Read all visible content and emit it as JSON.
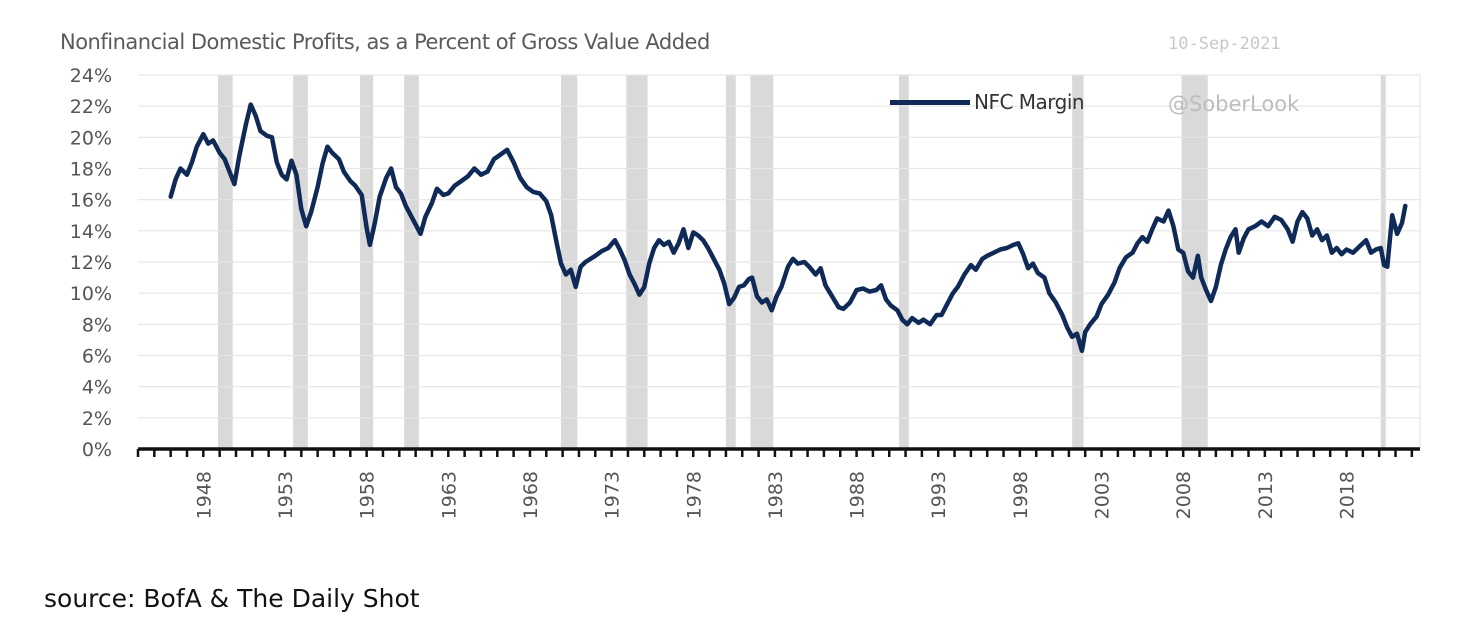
{
  "title": "Nonfinancial Domestic Profits, as a Percent of Gross Value Added",
  "date_stamp": "10-Sep-2021",
  "watermark": "@SoberLook",
  "source": "source: BofA & The Daily Shot",
  "colors": {
    "line": "#0f2a57",
    "recession": "#d9d9d9",
    "grid": "#e6e6e6",
    "axis": "#111111"
  },
  "chart_data": {
    "type": "line",
    "title": "Nonfinancial Domestic Profits, as a Percent of Gross Value Added",
    "xlabel": "",
    "ylabel": "",
    "xlim": [
      1944,
      2022.5
    ],
    "ylim": [
      0,
      24
    ],
    "y_tick_values": [
      0,
      2,
      4,
      6,
      8,
      10,
      12,
      14,
      16,
      18,
      20,
      22,
      24
    ],
    "y_tick_labels": [
      "0%",
      "2%",
      "4%",
      "6%",
      "8%",
      "10%",
      "12%",
      "14%",
      "16%",
      "18%",
      "20%",
      "22%",
      "24%"
    ],
    "x_tick_values": [
      1948,
      1953,
      1958,
      1963,
      1968,
      1973,
      1978,
      1983,
      1988,
      1993,
      1998,
      2003,
      2008,
      2013,
      2018
    ],
    "x_tick_labels": [
      "1948",
      "1953",
      "1958",
      "1963",
      "1968",
      "1973",
      "1978",
      "1983",
      "1988",
      "1993",
      "1998",
      "2003",
      "2008",
      "2013",
      "2018"
    ],
    "grid": true,
    "legend_position": "top-right",
    "recessions": [
      [
        1948.9,
        1949.8
      ],
      [
        1953.5,
        1954.4
      ],
      [
        1957.6,
        1958.4
      ],
      [
        1960.3,
        1961.2
      ],
      [
        1969.9,
        1970.9
      ],
      [
        1973.9,
        1975.2
      ],
      [
        1980.0,
        1980.6
      ],
      [
        1981.5,
        1982.9
      ],
      [
        1990.6,
        1991.2
      ],
      [
        2001.2,
        2001.9
      ],
      [
        2007.9,
        2009.5
      ],
      [
        2020.1,
        2020.4
      ]
    ],
    "series": [
      {
        "name": "NFC Margin",
        "points": [
          [
            1946.0,
            16.2
          ],
          [
            1946.3,
            17.3
          ],
          [
            1946.6,
            18.0
          ],
          [
            1947.0,
            17.6
          ],
          [
            1947.3,
            18.4
          ],
          [
            1947.6,
            19.4
          ],
          [
            1948.0,
            20.2
          ],
          [
            1948.3,
            19.6
          ],
          [
            1948.6,
            19.8
          ],
          [
            1949.0,
            19.0
          ],
          [
            1949.3,
            18.6
          ],
          [
            1949.6,
            17.8
          ],
          [
            1949.9,
            17.0
          ],
          [
            1950.2,
            18.8
          ],
          [
            1950.6,
            20.8
          ],
          [
            1950.9,
            22.1
          ],
          [
            1951.2,
            21.4
          ],
          [
            1951.5,
            20.4
          ],
          [
            1951.9,
            20.1
          ],
          [
            1952.2,
            20.0
          ],
          [
            1952.5,
            18.4
          ],
          [
            1952.8,
            17.6
          ],
          [
            1953.1,
            17.3
          ],
          [
            1953.4,
            18.5
          ],
          [
            1953.7,
            17.6
          ],
          [
            1954.0,
            15.4
          ],
          [
            1954.3,
            14.3
          ],
          [
            1954.6,
            15.2
          ],
          [
            1955.0,
            16.8
          ],
          [
            1955.3,
            18.3
          ],
          [
            1955.6,
            19.4
          ],
          [
            1955.9,
            19.0
          ],
          [
            1956.3,
            18.6
          ],
          [
            1956.6,
            17.8
          ],
          [
            1957.0,
            17.2
          ],
          [
            1957.3,
            16.9
          ],
          [
            1957.7,
            16.3
          ],
          [
            1958.0,
            14.2
          ],
          [
            1958.2,
            13.1
          ],
          [
            1958.5,
            14.5
          ],
          [
            1958.8,
            16.2
          ],
          [
            1959.2,
            17.4
          ],
          [
            1959.5,
            18.0
          ],
          [
            1959.8,
            16.8
          ],
          [
            1960.1,
            16.4
          ],
          [
            1960.4,
            15.6
          ],
          [
            1960.8,
            14.8
          ],
          [
            1961.1,
            14.2
          ],
          [
            1961.3,
            13.8
          ],
          [
            1961.6,
            14.9
          ],
          [
            1962.0,
            15.8
          ],
          [
            1962.3,
            16.7
          ],
          [
            1962.7,
            16.3
          ],
          [
            1963.0,
            16.4
          ],
          [
            1963.4,
            16.9
          ],
          [
            1963.8,
            17.2
          ],
          [
            1964.2,
            17.5
          ],
          [
            1964.6,
            18.0
          ],
          [
            1965.0,
            17.6
          ],
          [
            1965.4,
            17.8
          ],
          [
            1965.8,
            18.6
          ],
          [
            1966.2,
            18.9
          ],
          [
            1966.6,
            19.2
          ],
          [
            1967.0,
            18.4
          ],
          [
            1967.4,
            17.4
          ],
          [
            1967.8,
            16.8
          ],
          [
            1968.2,
            16.5
          ],
          [
            1968.6,
            16.4
          ],
          [
            1969.0,
            15.9
          ],
          [
            1969.3,
            15.0
          ],
          [
            1969.6,
            13.4
          ],
          [
            1969.9,
            11.9
          ],
          [
            1970.2,
            11.2
          ],
          [
            1970.5,
            11.5
          ],
          [
            1970.8,
            10.4
          ],
          [
            1971.1,
            11.7
          ],
          [
            1971.4,
            12.0
          ],
          [
            1971.7,
            12.2
          ],
          [
            1972.0,
            12.4
          ],
          [
            1972.4,
            12.7
          ],
          [
            1972.8,
            12.9
          ],
          [
            1973.2,
            13.4
          ],
          [
            1973.5,
            12.8
          ],
          [
            1973.8,
            12.1
          ],
          [
            1974.1,
            11.2
          ],
          [
            1974.4,
            10.6
          ],
          [
            1974.7,
            9.9
          ],
          [
            1975.0,
            10.4
          ],
          [
            1975.3,
            11.9
          ],
          [
            1975.6,
            12.9
          ],
          [
            1975.9,
            13.4
          ],
          [
            1976.2,
            13.1
          ],
          [
            1976.5,
            13.3
          ],
          [
            1976.8,
            12.6
          ],
          [
            1977.1,
            13.2
          ],
          [
            1977.4,
            14.1
          ],
          [
            1977.7,
            12.9
          ],
          [
            1978.0,
            13.9
          ],
          [
            1978.3,
            13.7
          ],
          [
            1978.6,
            13.4
          ],
          [
            1978.9,
            12.9
          ],
          [
            1979.2,
            12.3
          ],
          [
            1979.6,
            11.5
          ],
          [
            1979.9,
            10.6
          ],
          [
            1980.2,
            9.3
          ],
          [
            1980.5,
            9.7
          ],
          [
            1980.8,
            10.4
          ],
          [
            1981.1,
            10.5
          ],
          [
            1981.4,
            10.9
          ],
          [
            1981.6,
            11.0
          ],
          [
            1981.9,
            9.8
          ],
          [
            1982.2,
            9.4
          ],
          [
            1982.5,
            9.6
          ],
          [
            1982.8,
            8.9
          ],
          [
            1983.1,
            9.8
          ],
          [
            1983.4,
            10.4
          ],
          [
            1983.8,
            11.7
          ],
          [
            1984.1,
            12.2
          ],
          [
            1984.4,
            11.9
          ],
          [
            1984.8,
            12.0
          ],
          [
            1985.1,
            11.7
          ],
          [
            1985.5,
            11.2
          ],
          [
            1985.8,
            11.6
          ],
          [
            1986.1,
            10.5
          ],
          [
            1986.5,
            9.8
          ],
          [
            1986.9,
            9.1
          ],
          [
            1987.2,
            9.0
          ],
          [
            1987.6,
            9.4
          ],
          [
            1988.0,
            10.2
          ],
          [
            1988.4,
            10.3
          ],
          [
            1988.8,
            10.1
          ],
          [
            1989.2,
            10.2
          ],
          [
            1989.5,
            10.5
          ],
          [
            1989.8,
            9.6
          ],
          [
            1990.1,
            9.2
          ],
          [
            1990.5,
            8.9
          ],
          [
            1990.8,
            8.3
          ],
          [
            1991.1,
            8.0
          ],
          [
            1991.4,
            8.4
          ],
          [
            1991.8,
            8.1
          ],
          [
            1992.1,
            8.3
          ],
          [
            1992.5,
            8.0
          ],
          [
            1992.9,
            8.6
          ],
          [
            1993.2,
            8.6
          ],
          [
            1993.5,
            9.2
          ],
          [
            1993.9,
            10.0
          ],
          [
            1994.2,
            10.4
          ],
          [
            1994.6,
            11.2
          ],
          [
            1995.0,
            11.8
          ],
          [
            1995.3,
            11.5
          ],
          [
            1995.7,
            12.2
          ],
          [
            1996.0,
            12.4
          ],
          [
            1996.4,
            12.6
          ],
          [
            1996.8,
            12.8
          ],
          [
            1997.2,
            12.9
          ],
          [
            1997.6,
            13.1
          ],
          [
            1997.9,
            13.2
          ],
          [
            1998.2,
            12.5
          ],
          [
            1998.5,
            11.6
          ],
          [
            1998.8,
            11.9
          ],
          [
            1999.1,
            11.3
          ],
          [
            1999.5,
            11.0
          ],
          [
            1999.8,
            10.0
          ],
          [
            2000.2,
            9.4
          ],
          [
            2000.6,
            8.6
          ],
          [
            2000.9,
            7.8
          ],
          [
            2001.2,
            7.2
          ],
          [
            2001.5,
            7.4
          ],
          [
            2001.8,
            6.3
          ],
          [
            2002.0,
            7.5
          ],
          [
            2002.3,
            8.0
          ],
          [
            2002.7,
            8.5
          ],
          [
            2003.0,
            9.3
          ],
          [
            2003.4,
            9.9
          ],
          [
            2003.8,
            10.7
          ],
          [
            2004.1,
            11.6
          ],
          [
            2004.5,
            12.3
          ],
          [
            2004.9,
            12.6
          ],
          [
            2005.2,
            13.2
          ],
          [
            2005.5,
            13.6
          ],
          [
            2005.8,
            13.3
          ],
          [
            2006.1,
            14.1
          ],
          [
            2006.4,
            14.8
          ],
          [
            2006.8,
            14.6
          ],
          [
            2007.1,
            15.3
          ],
          [
            2007.4,
            14.3
          ],
          [
            2007.7,
            12.8
          ],
          [
            2008.0,
            12.6
          ],
          [
            2008.3,
            11.4
          ],
          [
            2008.6,
            11.0
          ],
          [
            2008.9,
            12.4
          ],
          [
            2009.1,
            11.0
          ],
          [
            2009.4,
            10.2
          ],
          [
            2009.7,
            9.5
          ],
          [
            2010.0,
            10.4
          ],
          [
            2010.3,
            11.8
          ],
          [
            2010.6,
            12.8
          ],
          [
            2010.9,
            13.6
          ],
          [
            2011.2,
            14.1
          ],
          [
            2011.4,
            12.6
          ],
          [
            2011.7,
            13.5
          ],
          [
            2012.0,
            14.1
          ],
          [
            2012.4,
            14.3
          ],
          [
            2012.8,
            14.6
          ],
          [
            2013.2,
            14.3
          ],
          [
            2013.6,
            14.9
          ],
          [
            2014.0,
            14.7
          ],
          [
            2014.4,
            14.1
          ],
          [
            2014.7,
            13.3
          ],
          [
            2015.0,
            14.6
          ],
          [
            2015.3,
            15.2
          ],
          [
            2015.6,
            14.8
          ],
          [
            2015.9,
            13.7
          ],
          [
            2016.2,
            14.1
          ],
          [
            2016.5,
            13.4
          ],
          [
            2016.8,
            13.7
          ],
          [
            2017.1,
            12.6
          ],
          [
            2017.4,
            12.9
          ],
          [
            2017.7,
            12.5
          ],
          [
            2018.0,
            12.8
          ],
          [
            2018.4,
            12.6
          ],
          [
            2018.8,
            13.0
          ],
          [
            2019.2,
            13.4
          ],
          [
            2019.5,
            12.6
          ],
          [
            2019.8,
            12.8
          ],
          [
            2020.1,
            12.9
          ],
          [
            2020.3,
            11.8
          ],
          [
            2020.5,
            11.7
          ],
          [
            2020.8,
            15.0
          ],
          [
            2021.1,
            13.8
          ],
          [
            2021.4,
            14.5
          ],
          [
            2021.6,
            15.6
          ]
        ]
      }
    ]
  }
}
